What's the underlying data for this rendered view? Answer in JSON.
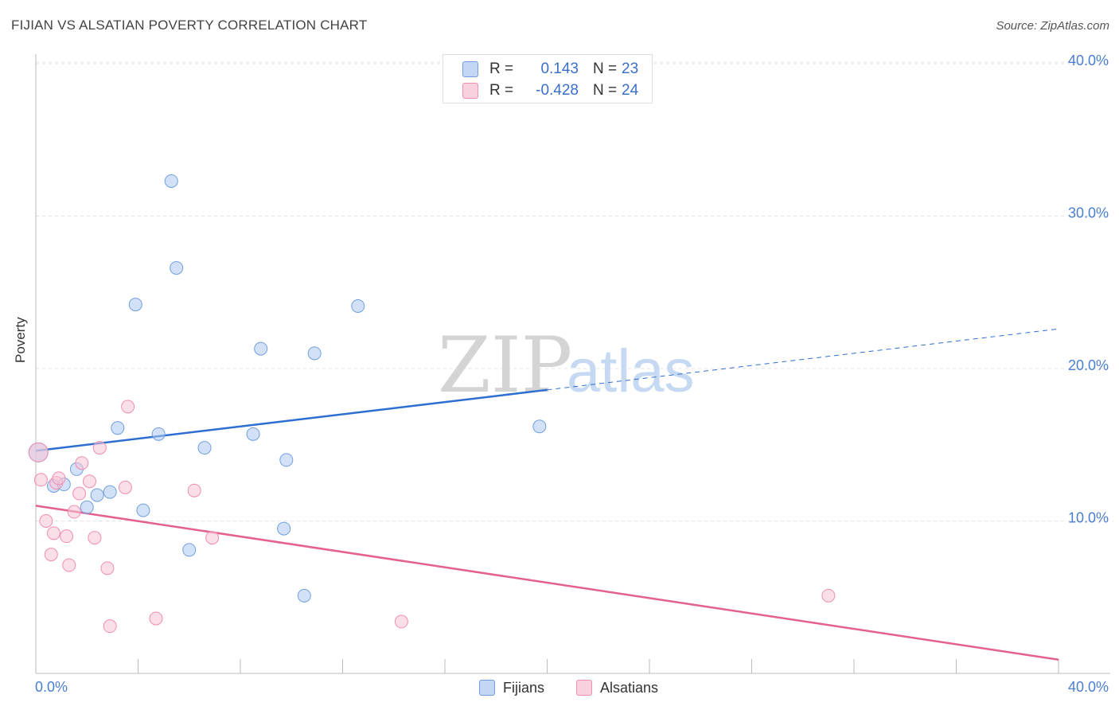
{
  "title": "FIJIAN VS ALSATIAN POVERTY CORRELATION CHART",
  "source": "Source: ZipAtlas.com",
  "watermark": {
    "zip": "ZIP",
    "atlas": "atlas"
  },
  "legend_top": [
    {
      "r_label": "R =",
      "r_value": "0.143",
      "n_label": "N =",
      "n_value": "23"
    },
    {
      "r_label": "R =",
      "r_value": "-0.428",
      "n_label": "N =",
      "n_value": "24"
    }
  ],
  "chart_data": {
    "type": "scatter",
    "title": "FIJIAN VS ALSATIAN POVERTY CORRELATION CHART",
    "xlabel": "",
    "ylabel": "Poverty",
    "xlim": [
      0,
      40
    ],
    "ylim": [
      0,
      40
    ],
    "x_tick_labels": [
      "0.0%",
      "40.0%"
    ],
    "y_tick_labels": [
      "10.0%",
      "20.0%",
      "30.0%",
      "40.0%"
    ],
    "y_ticks": [
      10,
      20,
      30,
      40
    ],
    "grid": true,
    "legend_position": "bottom",
    "colors": {
      "Fijians": "#6f9fe0",
      "Alsatians": "#f08db0",
      "fijian_line": "#2d6fd0",
      "alsatian_line": "#e4608e",
      "tick_text": "#4a7fd0"
    },
    "series": [
      {
        "name": "Fijians",
        "r": 0.143,
        "n": 23,
        "points": [
          [
            0.1,
            14.5
          ],
          [
            0.7,
            12.3
          ],
          [
            1.1,
            12.4
          ],
          [
            1.6,
            13.4
          ],
          [
            2.0,
            10.9
          ],
          [
            2.4,
            11.7
          ],
          [
            2.9,
            11.9
          ],
          [
            3.2,
            16.1
          ],
          [
            3.9,
            24.2
          ],
          [
            4.2,
            10.7
          ],
          [
            4.8,
            15.7
          ],
          [
            5.3,
            32.3
          ],
          [
            5.5,
            26.6
          ],
          [
            6.0,
            8.1
          ],
          [
            6.6,
            14.8
          ],
          [
            8.5,
            15.7
          ],
          [
            8.8,
            21.3
          ],
          [
            9.7,
            9.5
          ],
          [
            9.8,
            14.0
          ],
          [
            10.5,
            5.1
          ],
          [
            10.9,
            21.0
          ],
          [
            12.6,
            24.1
          ],
          [
            19.7,
            16.2
          ]
        ],
        "trend": {
          "x_start": 0,
          "y_start": 14.6,
          "x_end": 40,
          "y_end": 22.6,
          "solid_until_x": 20.0
        }
      },
      {
        "name": "Alsatians",
        "r": -0.428,
        "n": 24,
        "points": [
          [
            0.1,
            14.5
          ],
          [
            0.2,
            12.7
          ],
          [
            0.4,
            10.0
          ],
          [
            0.6,
            7.8
          ],
          [
            0.7,
            9.2
          ],
          [
            0.8,
            12.5
          ],
          [
            0.9,
            12.8
          ],
          [
            1.2,
            9.0
          ],
          [
            1.3,
            7.1
          ],
          [
            1.5,
            10.6
          ],
          [
            1.7,
            11.8
          ],
          [
            1.8,
            13.8
          ],
          [
            2.1,
            12.6
          ],
          [
            2.3,
            8.9
          ],
          [
            2.5,
            14.8
          ],
          [
            2.8,
            6.9
          ],
          [
            2.9,
            3.1
          ],
          [
            3.5,
            12.2
          ],
          [
            3.6,
            17.5
          ],
          [
            4.7,
            3.6
          ],
          [
            6.2,
            12.0
          ],
          [
            6.9,
            8.9
          ],
          [
            14.3,
            3.4
          ],
          [
            31.0,
            5.1
          ]
        ],
        "trend": {
          "x_start": 0,
          "y_start": 11.0,
          "x_end": 40,
          "y_end": 0.9
        }
      }
    ]
  }
}
